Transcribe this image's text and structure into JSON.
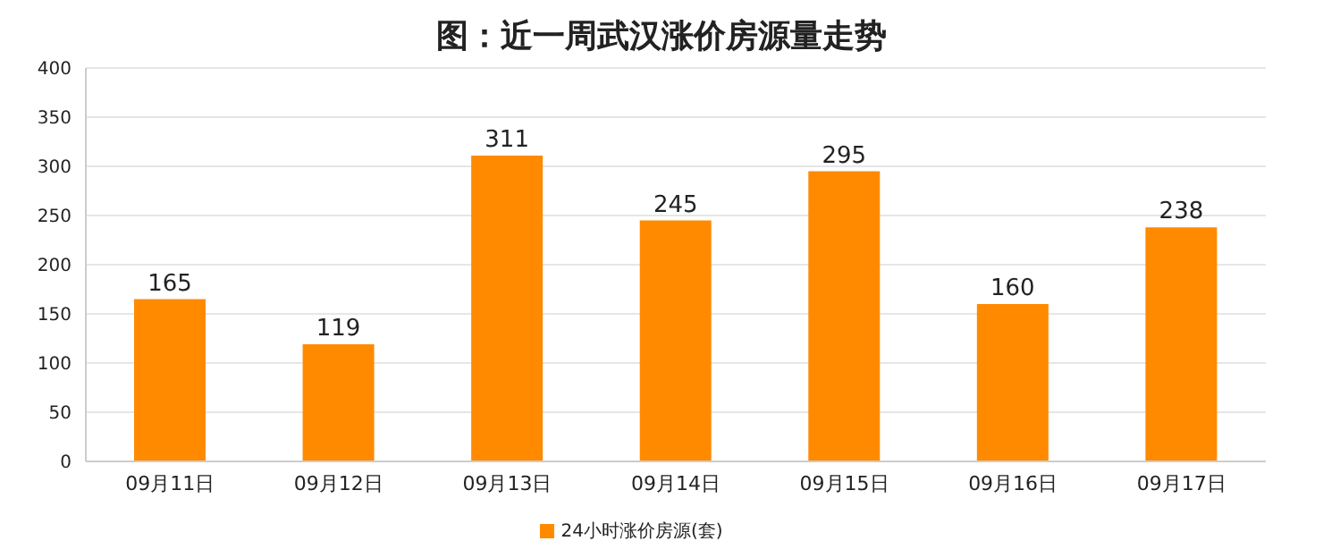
{
  "chart_data": {
    "type": "bar",
    "title": "图：近一周武汉涨价房源量走势",
    "categories": [
      "09月11日",
      "09月12日",
      "09月13日",
      "09月14日",
      "09月15日",
      "09月16日",
      "09月17日"
    ],
    "series": [
      {
        "name": "24小时涨价房源(套)",
        "color": "#ff8a00",
        "values": [
          165,
          119,
          311,
          245,
          295,
          160,
          238
        ]
      }
    ],
    "ylim": [
      0,
      400
    ],
    "yticks": [
      0,
      50,
      100,
      150,
      200,
      250,
      300,
      350,
      400
    ],
    "grid": "y",
    "legend": "bottom",
    "data_labels": true
  }
}
